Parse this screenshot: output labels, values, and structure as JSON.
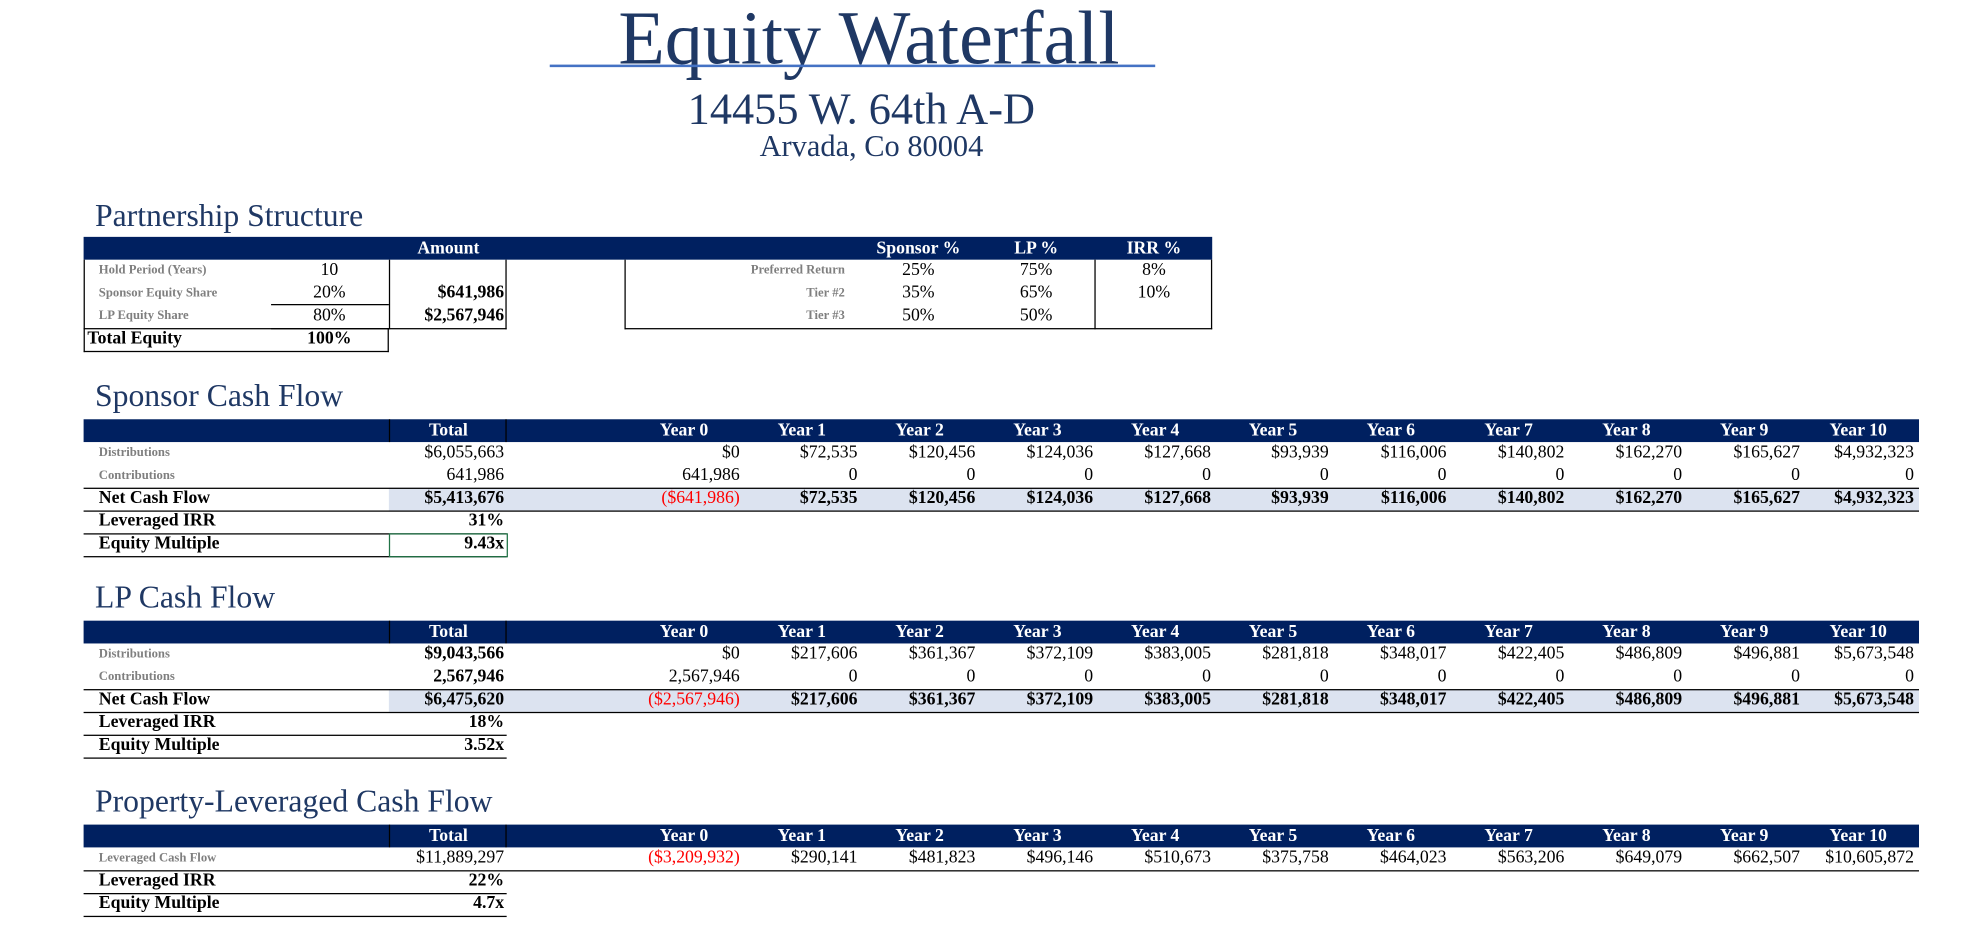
{
  "header": {
    "title": "Equity Waterfall",
    "address": "14455 W. 64th A-D",
    "city": "Arvada, Co 80004"
  },
  "partnership": {
    "title": "Partnership Structure",
    "amount_header": "Amount",
    "rows": [
      {
        "label": "Hold Period (Years)",
        "value": "10"
      },
      {
        "label": "Sponsor Equity Share",
        "value": "20%",
        "amount": "$641,986"
      },
      {
        "label": "LP Equity Share",
        "value": "80%",
        "amount": "$2,567,946"
      }
    ],
    "total": {
      "label": "Total Equity",
      "value": "100%"
    },
    "tier_columns": [
      "Sponsor %",
      "LP %",
      "IRR %"
    ],
    "tiers": [
      {
        "label": "Preferred Return",
        "values": [
          "25%",
          "75%",
          "8%"
        ]
      },
      {
        "label": "Tier #2",
        "values": [
          "35%",
          "65%",
          "10%"
        ]
      },
      {
        "label": "Tier #3",
        "values": [
          "50%",
          "50%"
        ]
      }
    ]
  },
  "sections": [
    {
      "title": "Sponsor Cash Flow",
      "columns": [
        "Total",
        "Year 0",
        "Year 1",
        "Year 2",
        "Year 3",
        "Year 4",
        "Year 5",
        "Year 6",
        "Year 7",
        "Year 8",
        "Year 9",
        "Year 10"
      ],
      "rows": [
        {
          "label": "Distributions",
          "values": [
            "$6,055,663",
            "$0",
            "$72,535",
            "$120,456",
            "$124,036",
            "$127,668",
            "$93,939",
            "$116,006",
            "$140,802",
            "$162,270",
            "$165,627",
            "$4,932,323"
          ]
        },
        {
          "label": "Contributions",
          "values": [
            "641,986",
            "641,986",
            "0",
            "0",
            "0",
            "0",
            "0",
            "0",
            "0",
            "0",
            "0",
            "0"
          ]
        },
        {
          "label": "Net Cash Flow",
          "values": [
            "$5,413,676",
            "($641,986)",
            "$72,535",
            "$120,456",
            "$124,036",
            "$127,668",
            "$93,939",
            "$116,006",
            "$140,802",
            "$162,270",
            "$165,627",
            "$4,932,323"
          ]
        }
      ],
      "metrics": [
        {
          "label": "Leveraged IRR",
          "value": "31%"
        },
        {
          "label": "Equity Multiple",
          "value": "9.43x"
        }
      ]
    },
    {
      "title": "LP Cash Flow",
      "columns": [
        "Total",
        "Year 0",
        "Year 1",
        "Year 2",
        "Year 3",
        "Year 4",
        "Year 5",
        "Year 6",
        "Year 7",
        "Year 8",
        "Year 9",
        "Year 10"
      ],
      "rows": [
        {
          "label": "Distributions",
          "values": [
            "$9,043,566",
            "$0",
            "$217,606",
            "$361,367",
            "$372,109",
            "$383,005",
            "$281,818",
            "$348,017",
            "$422,405",
            "$486,809",
            "$496,881",
            "$5,673,548"
          ]
        },
        {
          "label": "Contributions",
          "values": [
            "2,567,946",
            "2,567,946",
            "0",
            "0",
            "0",
            "0",
            "0",
            "0",
            "0",
            "0",
            "0",
            "0"
          ]
        },
        {
          "label": "Net Cash Flow",
          "values": [
            "$6,475,620",
            "($2,567,946)",
            "$217,606",
            "$361,367",
            "$372,109",
            "$383,005",
            "$281,818",
            "$348,017",
            "$422,405",
            "$486,809",
            "$496,881",
            "$5,673,548"
          ]
        }
      ],
      "metrics": [
        {
          "label": "Leveraged IRR",
          "value": "18%"
        },
        {
          "label": "Equity Multiple",
          "value": "3.52x"
        }
      ]
    },
    {
      "title": "Property-Leveraged Cash Flow",
      "columns": [
        "Total",
        "Year 0",
        "Year 1",
        "Year 2",
        "Year 3",
        "Year 4",
        "Year 5",
        "Year 6",
        "Year 7",
        "Year 8",
        "Year 9",
        "Year 10"
      ],
      "rows": [
        {
          "label": "Leveraged Cash Flow",
          "values": [
            "$11,889,297",
            "($3,209,932)",
            "$290,141",
            "$481,823",
            "$496,146",
            "$510,673",
            "$375,758",
            "$464,023",
            "$563,206",
            "$649,079",
            "$662,507",
            "$10,605,872"
          ]
        }
      ],
      "metrics": [
        {
          "label": "Leveraged IRR",
          "value": "22%"
        },
        {
          "label": "Equity Multiple",
          "value": "4.7x"
        }
      ]
    }
  ]
}
